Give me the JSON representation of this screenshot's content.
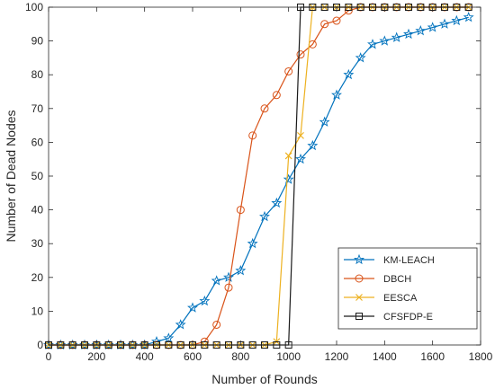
{
  "chart_data": {
    "type": "line",
    "title": "",
    "xlabel": "Number of Rounds",
    "ylabel": "Number of Dead Nodes",
    "xlim": [
      0,
      1800
    ],
    "ylim": [
      0,
      100
    ],
    "xticks": [
      0,
      200,
      400,
      600,
      800,
      1000,
      1200,
      1400,
      1600,
      1800
    ],
    "yticks": [
      0,
      10,
      20,
      30,
      40,
      50,
      60,
      70,
      80,
      90,
      100
    ],
    "grid": false,
    "legend": {
      "position": "bottom-right",
      "entries": [
        "KM-LEACH",
        "DBCH",
        "EESCA",
        "CFSFDP-E"
      ]
    },
    "series": [
      {
        "name": "KM-LEACH",
        "color": "#0072BD",
        "marker": "star",
        "x": [
          0,
          50,
          100,
          150,
          200,
          250,
          300,
          350,
          400,
          450,
          500,
          550,
          600,
          650,
          700,
          750,
          800,
          850,
          900,
          950,
          1000,
          1050,
          1100,
          1150,
          1200,
          1250,
          1300,
          1350,
          1400,
          1450,
          1500,
          1550,
          1600,
          1650,
          1700,
          1750
        ],
        "y": [
          0,
          0,
          0,
          0,
          0,
          0,
          0,
          0,
          0,
          1,
          2,
          6,
          11,
          13,
          19,
          20,
          22,
          30,
          38,
          42,
          49,
          55,
          59,
          66,
          74,
          80,
          85,
          89,
          90,
          91,
          92,
          93,
          94,
          95,
          96,
          97
        ]
      },
      {
        "name": "DBCH",
        "color": "#D95319",
        "marker": "circle",
        "x": [
          0,
          50,
          100,
          150,
          200,
          250,
          300,
          350,
          400,
          450,
          500,
          550,
          600,
          650,
          700,
          750,
          800,
          850,
          900,
          950,
          1000,
          1050,
          1100,
          1150,
          1200,
          1250,
          1300,
          1350,
          1400,
          1450,
          1500,
          1550,
          1600,
          1650,
          1700,
          1750
        ],
        "y": [
          0,
          0,
          0,
          0,
          0,
          0,
          0,
          0,
          0,
          0,
          0,
          0,
          0,
          1,
          6,
          17,
          40,
          62,
          70,
          74,
          81,
          86,
          89,
          95,
          96,
          99,
          100,
          100,
          100,
          100,
          100,
          100,
          100,
          100,
          100,
          100
        ]
      },
      {
        "name": "EESCA",
        "color": "#EDB120",
        "marker": "x",
        "x": [
          0,
          50,
          100,
          150,
          200,
          250,
          300,
          350,
          400,
          450,
          500,
          550,
          600,
          650,
          700,
          750,
          800,
          850,
          900,
          950,
          1000,
          1050,
          1100,
          1150,
          1200,
          1250,
          1300,
          1350,
          1400,
          1450,
          1500,
          1550,
          1600,
          1650,
          1700,
          1750
        ],
        "y": [
          0,
          0,
          0,
          0,
          0,
          0,
          0,
          0,
          0,
          0,
          0,
          0,
          0,
          0,
          0,
          0,
          0,
          0,
          0,
          1,
          56,
          62,
          100,
          100,
          100,
          100,
          100,
          100,
          100,
          100,
          100,
          100,
          100,
          100,
          100,
          100
        ]
      },
      {
        "name": "CFSFDP-E",
        "color": "#1a1a1a",
        "marker": "square",
        "x": [
          0,
          50,
          100,
          150,
          200,
          250,
          300,
          350,
          400,
          450,
          500,
          550,
          600,
          650,
          700,
          750,
          800,
          850,
          900,
          950,
          1000,
          1050,
          1100,
          1150,
          1200,
          1250,
          1300,
          1350,
          1400,
          1450,
          1500,
          1550,
          1600,
          1650,
          1700,
          1750
        ],
        "y": [
          0,
          0,
          0,
          0,
          0,
          0,
          0,
          0,
          0,
          0,
          0,
          0,
          0,
          0,
          0,
          0,
          0,
          0,
          0,
          0,
          0,
          100,
          100,
          100,
          100,
          100,
          100,
          100,
          100,
          100,
          100,
          100,
          100,
          100,
          100,
          100
        ]
      }
    ]
  }
}
